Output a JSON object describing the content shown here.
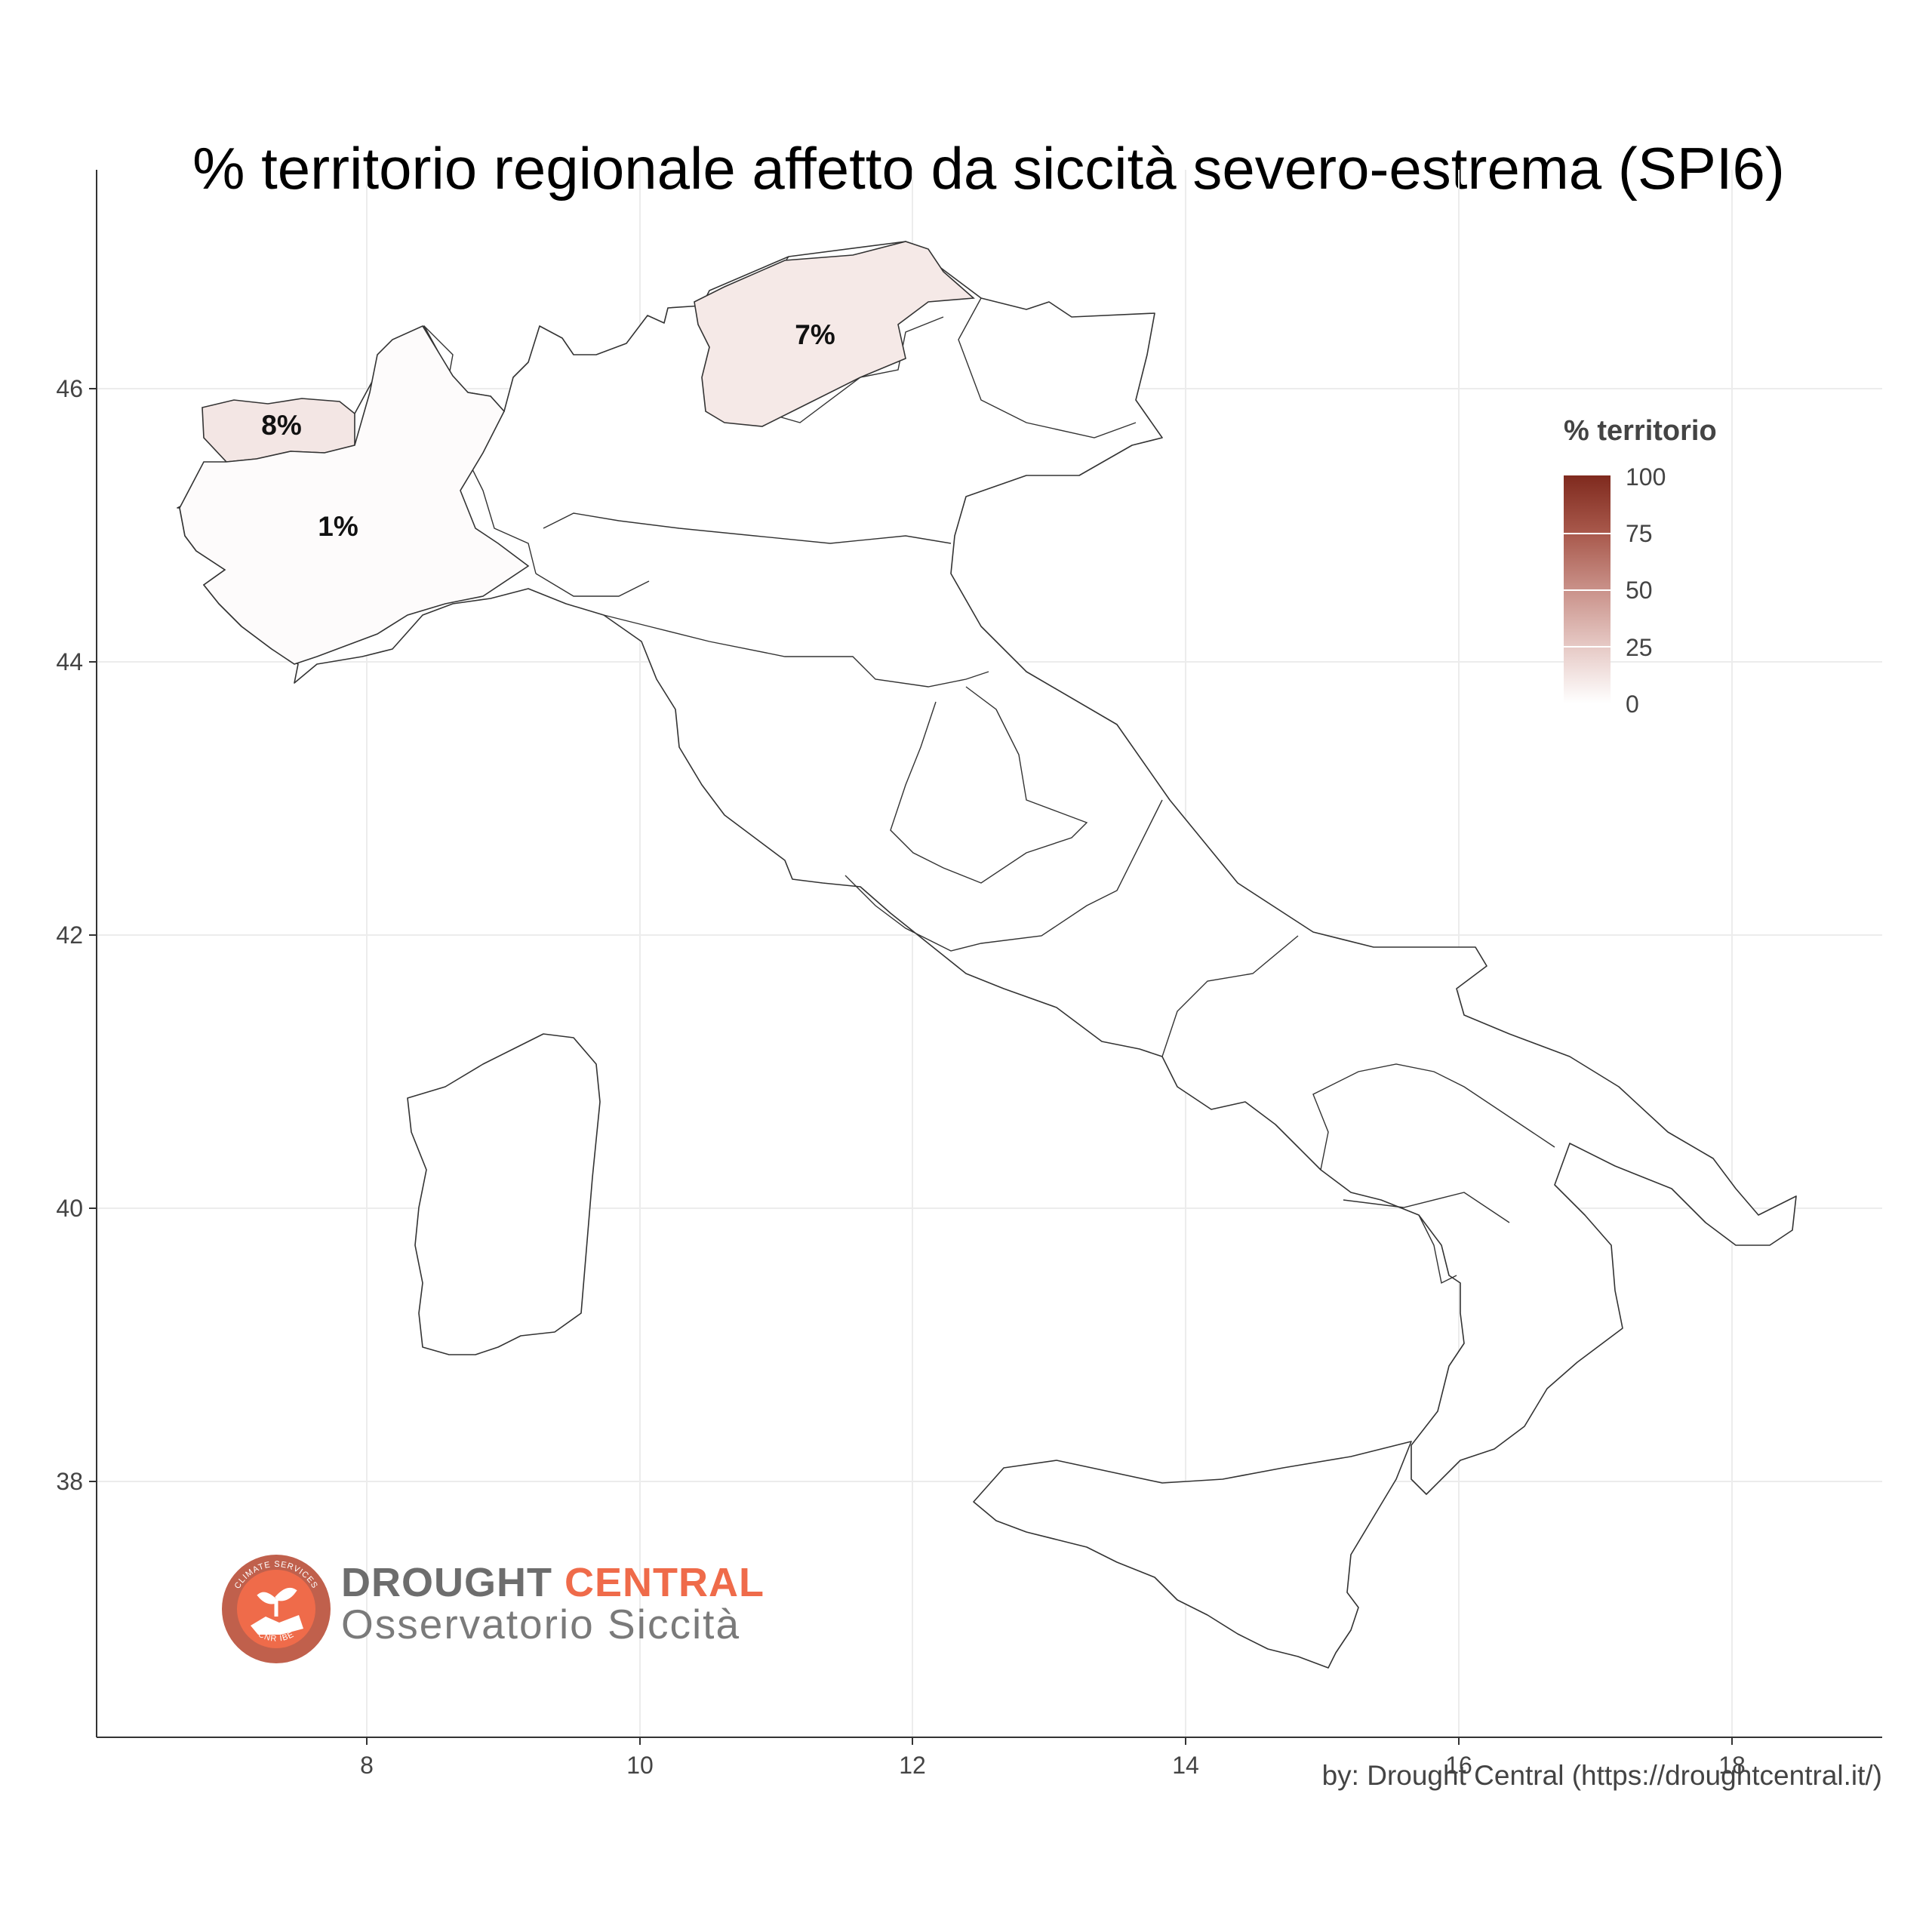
{
  "title": "% territorio regionale affetto da siccità severo-estrema (SPI6)",
  "axes": {
    "x_ticks": [
      "8",
      "10",
      "12",
      "14",
      "16",
      "18"
    ],
    "y_ticks": [
      "46",
      "44",
      "42",
      "40",
      "38"
    ]
  },
  "regions": [
    {
      "name": "Valle d'Aosta",
      "label": "8%",
      "value": 8
    },
    {
      "name": "Piemonte",
      "label": "1%",
      "value": 1
    },
    {
      "name": "Trentino-Alto Adige",
      "label": "7%",
      "value": 7
    }
  ],
  "legend": {
    "title": "% territorio",
    "ticks": [
      "100",
      "75",
      "50",
      "25",
      "0"
    ],
    "color_high": "#7f2a1e",
    "color_low": "#ffffff"
  },
  "credit": "by: Drought Central (https://droughtcentral.it/)",
  "logo": {
    "brand_primary": "DROUGHT",
    "brand_accent": "CENTRAL",
    "subtitle": "Osservatorio Siccità",
    "badge_top": "CLIMATE SERVICES",
    "badge_bottom": "CNR IBE",
    "accent_color": "#ef6b4a"
  }
}
